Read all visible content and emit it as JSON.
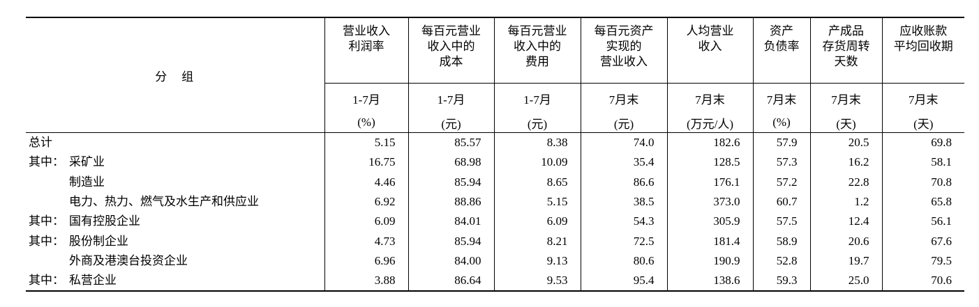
{
  "table": {
    "group_header": "分　组",
    "columns": [
      {
        "title": [
          "营业收入",
          "利润率"
        ],
        "period": "1-7月",
        "unit": "(%)"
      },
      {
        "title": [
          "每百元营业",
          "收入中的",
          "成本"
        ],
        "period": "1-7月",
        "unit": "(元)"
      },
      {
        "title": [
          "每百元营业",
          "收入中的",
          "费用"
        ],
        "period": "1-7月",
        "unit": "(元)"
      },
      {
        "title": [
          "每百元资产",
          "实现的",
          "营业收入"
        ],
        "period": "7月末",
        "unit": "(元)"
      },
      {
        "title": [
          "人均营业",
          "收入"
        ],
        "period": "7月末",
        "unit": "(万元/人)"
      },
      {
        "title": [
          "资产",
          "负债率"
        ],
        "period": "7月末",
        "unit": "(%)"
      },
      {
        "title": [
          "产成品",
          "存货周转",
          "天数"
        ],
        "period": "7月末",
        "unit": "(天)"
      },
      {
        "title": [
          "应收账款",
          "平均回收期"
        ],
        "period": "7月末",
        "unit": "(天)"
      }
    ],
    "rows": [
      {
        "label": "总计",
        "values": [
          "5.15",
          "85.57",
          "8.38",
          "74.0",
          "182.6",
          "57.9",
          "20.5",
          "69.8"
        ]
      },
      {
        "prefix": "其中：",
        "label": "采矿业",
        "values": [
          "16.75",
          "68.98",
          "10.09",
          "35.4",
          "128.5",
          "57.3",
          "16.2",
          "58.1"
        ]
      },
      {
        "indent": true,
        "label": "制造业",
        "values": [
          "4.46",
          "85.94",
          "8.65",
          "86.6",
          "176.1",
          "57.2",
          "22.8",
          "70.8"
        ]
      },
      {
        "indent": true,
        "label": "电力、热力、燃气及水生产和供应业",
        "values": [
          "6.92",
          "88.86",
          "5.15",
          "38.5",
          "373.0",
          "60.7",
          "1.2",
          "65.8"
        ]
      },
      {
        "prefix": "其中：",
        "label": "国有控股企业",
        "values": [
          "6.09",
          "84.01",
          "6.09",
          "54.3",
          "305.9",
          "57.5",
          "12.4",
          "56.1"
        ]
      },
      {
        "prefix": "其中：",
        "label": "股份制企业",
        "values": [
          "4.73",
          "85.94",
          "8.21",
          "72.5",
          "181.4",
          "58.9",
          "20.6",
          "67.6"
        ]
      },
      {
        "indent": true,
        "label": "外商及港澳台投资企业",
        "values": [
          "6.96",
          "84.00",
          "9.13",
          "80.6",
          "190.9",
          "52.8",
          "19.7",
          "79.5"
        ]
      },
      {
        "prefix": "其中：",
        "label": "私营企业",
        "values": [
          "3.88",
          "86.64",
          "9.53",
          "95.4",
          "138.6",
          "59.3",
          "25.0",
          "70.6"
        ]
      }
    ]
  }
}
